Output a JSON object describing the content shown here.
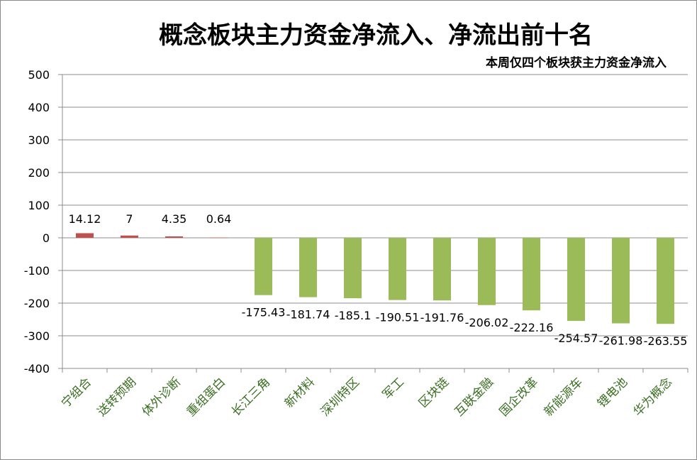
{
  "chart_data": {
    "type": "bar",
    "title": "概念板块主力资金净流入、净流出前十名",
    "subtitle": "本周仅四个板块获主力资金净流入",
    "categories": [
      "宁组合",
      "送转预期",
      "体外诊断",
      "重组蛋白",
      "长江三角",
      "新材料",
      "深圳特区",
      "军工",
      "区块链",
      "互联金融",
      "国企改革",
      "新能源车",
      "锂电池",
      "华为概念"
    ],
    "values": [
      14.12,
      7,
      4.35,
      0.64,
      -175.43,
      -181.74,
      -185.1,
      -190.51,
      -191.76,
      -206.02,
      -222.16,
      -254.57,
      -261.98,
      -263.55
    ],
    "data_labels": [
      "14.12",
      "7",
      "4.35",
      "0.64",
      "-175.43",
      "-181.74",
      "-185.1",
      "-190.51",
      "-191.76",
      "-206.02",
      "-222.16",
      "-254.57",
      "-261.98",
      "-263.55"
    ],
    "ylim": [
      -400,
      500
    ],
    "yticks": [
      500,
      400,
      300,
      200,
      100,
      0,
      -100,
      -200,
      -300,
      -400
    ],
    "ytick_labels": [
      "500",
      "400",
      "300",
      "200",
      "100",
      "0",
      "-100",
      "-200",
      "-300",
      "-400"
    ],
    "grid": true,
    "legend": "none",
    "colors": {
      "positive": "#c0504d",
      "negative": "#9bbb59",
      "xtick_text": "#3b6e22",
      "gridline": "#8c8c8c",
      "axis": "#8c8c8c"
    }
  }
}
